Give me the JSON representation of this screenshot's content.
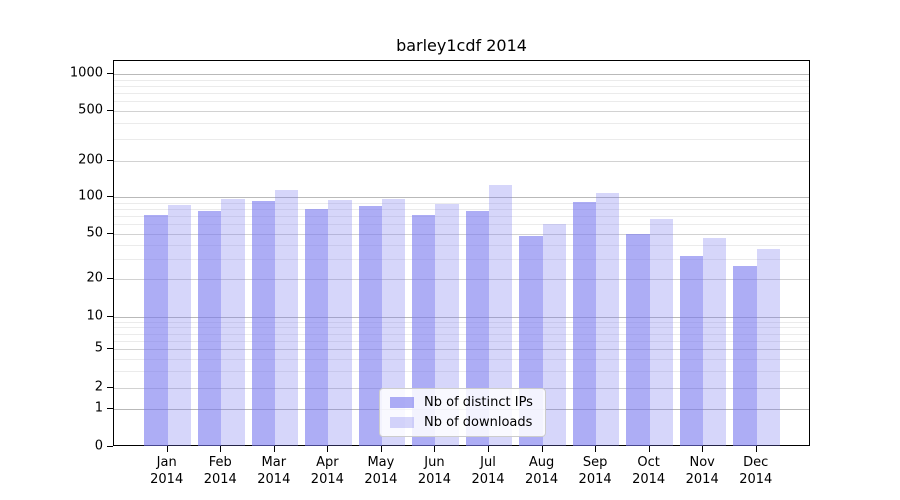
{
  "title": "barley1cdf 2014",
  "legend": {
    "items": [
      {
        "label": "Nb of distinct IPs",
        "color": "rgba(119,119,238,0.6)"
      },
      {
        "label": "Nb of downloads",
        "color": "rgba(119,119,238,0.3)"
      }
    ]
  },
  "colors": {
    "bar_distinct_ips": "rgba(119,119,238,0.6)",
    "bar_downloads": "rgba(119,119,238,0.3)",
    "grid_major": "#b9b9b9",
    "grid_labeled": "#d2d2d2",
    "grid_minor": "#ebebeb",
    "axis": "#000000"
  },
  "chart_data": {
    "type": "bar",
    "title": "barley1cdf 2014",
    "categories": [
      "Jan 2014",
      "Feb 2014",
      "Mar 2014",
      "Apr 2014",
      "May 2014",
      "Jun 2014",
      "Jul 2014",
      "Aug 2014",
      "Sep 2014",
      "Oct 2014",
      "Nov 2014",
      "Dec 2014"
    ],
    "x_tick_line1": [
      "Jan",
      "Feb",
      "Mar",
      "Apr",
      "May",
      "Jun",
      "Jul",
      "Aug",
      "Sep",
      "Oct",
      "Nov",
      "Dec"
    ],
    "x_tick_line2": "2014",
    "series": [
      {
        "name": "Nb of distinct IPs",
        "color": "rgba(119,119,238,0.6)",
        "values": [
          71,
          77,
          92,
          80,
          84,
          71,
          77,
          48,
          91,
          50,
          32,
          26
        ]
      },
      {
        "name": "Nb of downloads",
        "color": "rgba(119,119,238,0.3)",
        "values": [
          86,
          97,
          115,
          94,
          97,
          87,
          125,
          61,
          107,
          66,
          46,
          37
        ]
      }
    ],
    "xlabel": "",
    "ylabel": "",
    "yscale": "symlog",
    "y_ticks": [
      0,
      1,
      2,
      5,
      10,
      20,
      50,
      100,
      200,
      500,
      1000
    ],
    "ylim": [
      0,
      1400
    ],
    "grid": "both",
    "legend_position": "lower center"
  }
}
